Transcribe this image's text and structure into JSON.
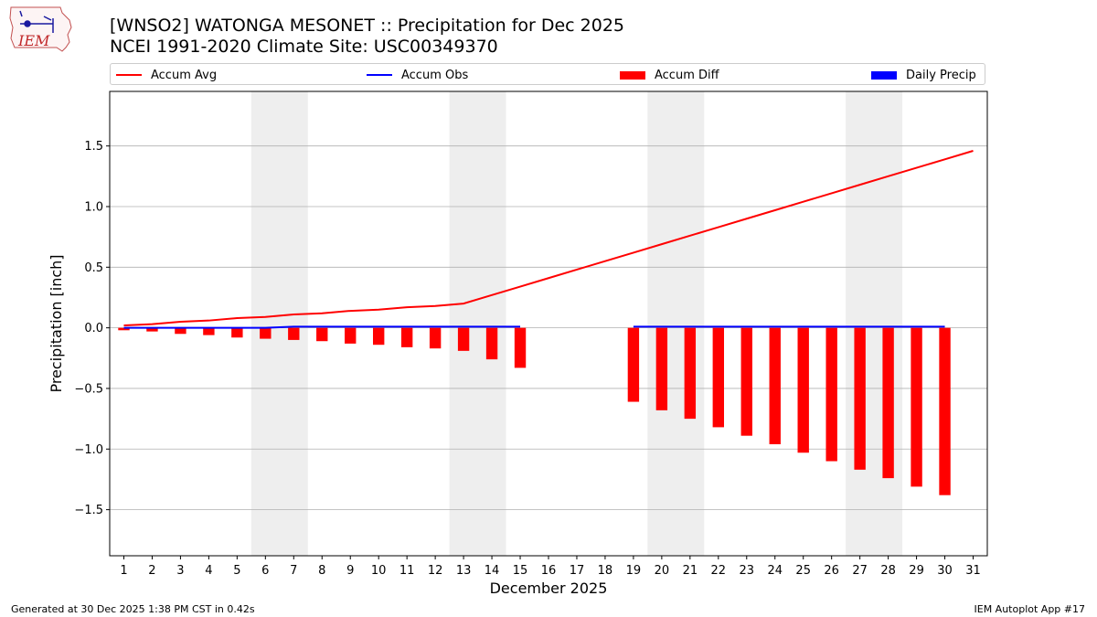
{
  "title_line1": "[WNSO2] WATONGA MESONET :: Precipitation for Dec 2025",
  "title_line2": "NCEI 1991-2020 Climate Site: USC00349370",
  "logo_text": "IEM",
  "footer_left": "Generated at 30 Dec 2025 1:38 PM CST in 0.42s",
  "footer_right": "IEM Autoplot App #17",
  "colors": {
    "accum_avg": "#ff0000",
    "accum_obs": "#0000ff",
    "accum_diff": "#ff0000",
    "daily_precip": "#0000ff",
    "weekend_shade": "#eeeeee",
    "grid": "#b0b0b0"
  },
  "chart_data": {
    "type": "bar",
    "title": "[WNSO2] WATONGA MESONET :: Precipitation for Dec 2025",
    "subtitle": "NCEI 1991-2020 Climate Site: USC00349370",
    "xlabel": "December 2025",
    "ylabel": "Precipitation [inch]",
    "x": [
      1,
      2,
      3,
      4,
      5,
      6,
      7,
      8,
      9,
      10,
      11,
      12,
      13,
      14,
      15,
      16,
      17,
      18,
      19,
      20,
      21,
      22,
      23,
      24,
      25,
      26,
      27,
      28,
      29,
      30,
      31
    ],
    "xlim": [
      0.5,
      31.5
    ],
    "ylim": [
      -1.88,
      1.95
    ],
    "yticks": [
      -1.5,
      -1.0,
      -0.5,
      0.0,
      0.5,
      1.0,
      1.5
    ],
    "ytick_labels": [
      "−1.5",
      "−1.0",
      "−0.5",
      "0.0",
      "0.5",
      "1.0",
      "1.5"
    ],
    "grid": "horizontal",
    "legend_position": "top",
    "shaded_days": [
      [
        6,
        7
      ],
      [
        13,
        14
      ],
      [
        20,
        21
      ],
      [
        27,
        28
      ]
    ],
    "series": [
      {
        "name": "Accum Avg",
        "kind": "line",
        "x": [
          1,
          2,
          3,
          4,
          5,
          6,
          7,
          8,
          9,
          10,
          11,
          12,
          13,
          14,
          15,
          16,
          17,
          18,
          19,
          20,
          21,
          22,
          23,
          24,
          25,
          26,
          27,
          28,
          29,
          30,
          31
        ],
        "values": [
          0.02,
          0.03,
          0.05,
          0.06,
          0.08,
          0.09,
          0.11,
          0.12,
          0.14,
          0.15,
          0.17,
          0.18,
          0.2,
          0.27,
          0.34,
          0.41,
          0.48,
          0.55,
          0.62,
          0.69,
          0.76,
          0.83,
          0.9,
          0.97,
          1.04,
          1.11,
          1.18,
          1.25,
          1.32,
          1.39,
          1.46
        ]
      },
      {
        "name": "Accum Obs",
        "kind": "line",
        "segments": [
          {
            "x": [
              1,
              2,
              3,
              4,
              5,
              6,
              7,
              8,
              9,
              10,
              11,
              12,
              13,
              14,
              15
            ],
            "values": [
              0,
              0,
              0,
              0,
              0,
              0,
              0.01,
              0.01,
              0.01,
              0.01,
              0.01,
              0.01,
              0.01,
              0.01,
              0.01
            ]
          },
          {
            "x": [
              19,
              20,
              21,
              22,
              23,
              24,
              25,
              26,
              27,
              28,
              29,
              30
            ],
            "values": [
              0.01,
              0.01,
              0.01,
              0.01,
              0.01,
              0.01,
              0.01,
              0.01,
              0.01,
              0.01,
              0.01,
              0.01
            ]
          }
        ]
      },
      {
        "name": "Accum Diff",
        "kind": "bar",
        "x": [
          1,
          2,
          3,
          4,
          5,
          6,
          7,
          8,
          9,
          10,
          11,
          12,
          13,
          14,
          15,
          19,
          20,
          21,
          22,
          23,
          24,
          25,
          26,
          27,
          28,
          29,
          30
        ],
        "values": [
          -0.02,
          -0.03,
          -0.05,
          -0.06,
          -0.08,
          -0.09,
          -0.1,
          -0.11,
          -0.13,
          -0.14,
          -0.16,
          -0.17,
          -0.19,
          -0.26,
          -0.33,
          -0.61,
          -0.68,
          -0.75,
          -0.82,
          -0.89,
          -0.96,
          -1.03,
          -1.1,
          -1.17,
          -1.24,
          -1.31,
          -1.38
        ]
      },
      {
        "name": "Daily Precip",
        "kind": "bar",
        "x": [],
        "values": []
      }
    ]
  }
}
